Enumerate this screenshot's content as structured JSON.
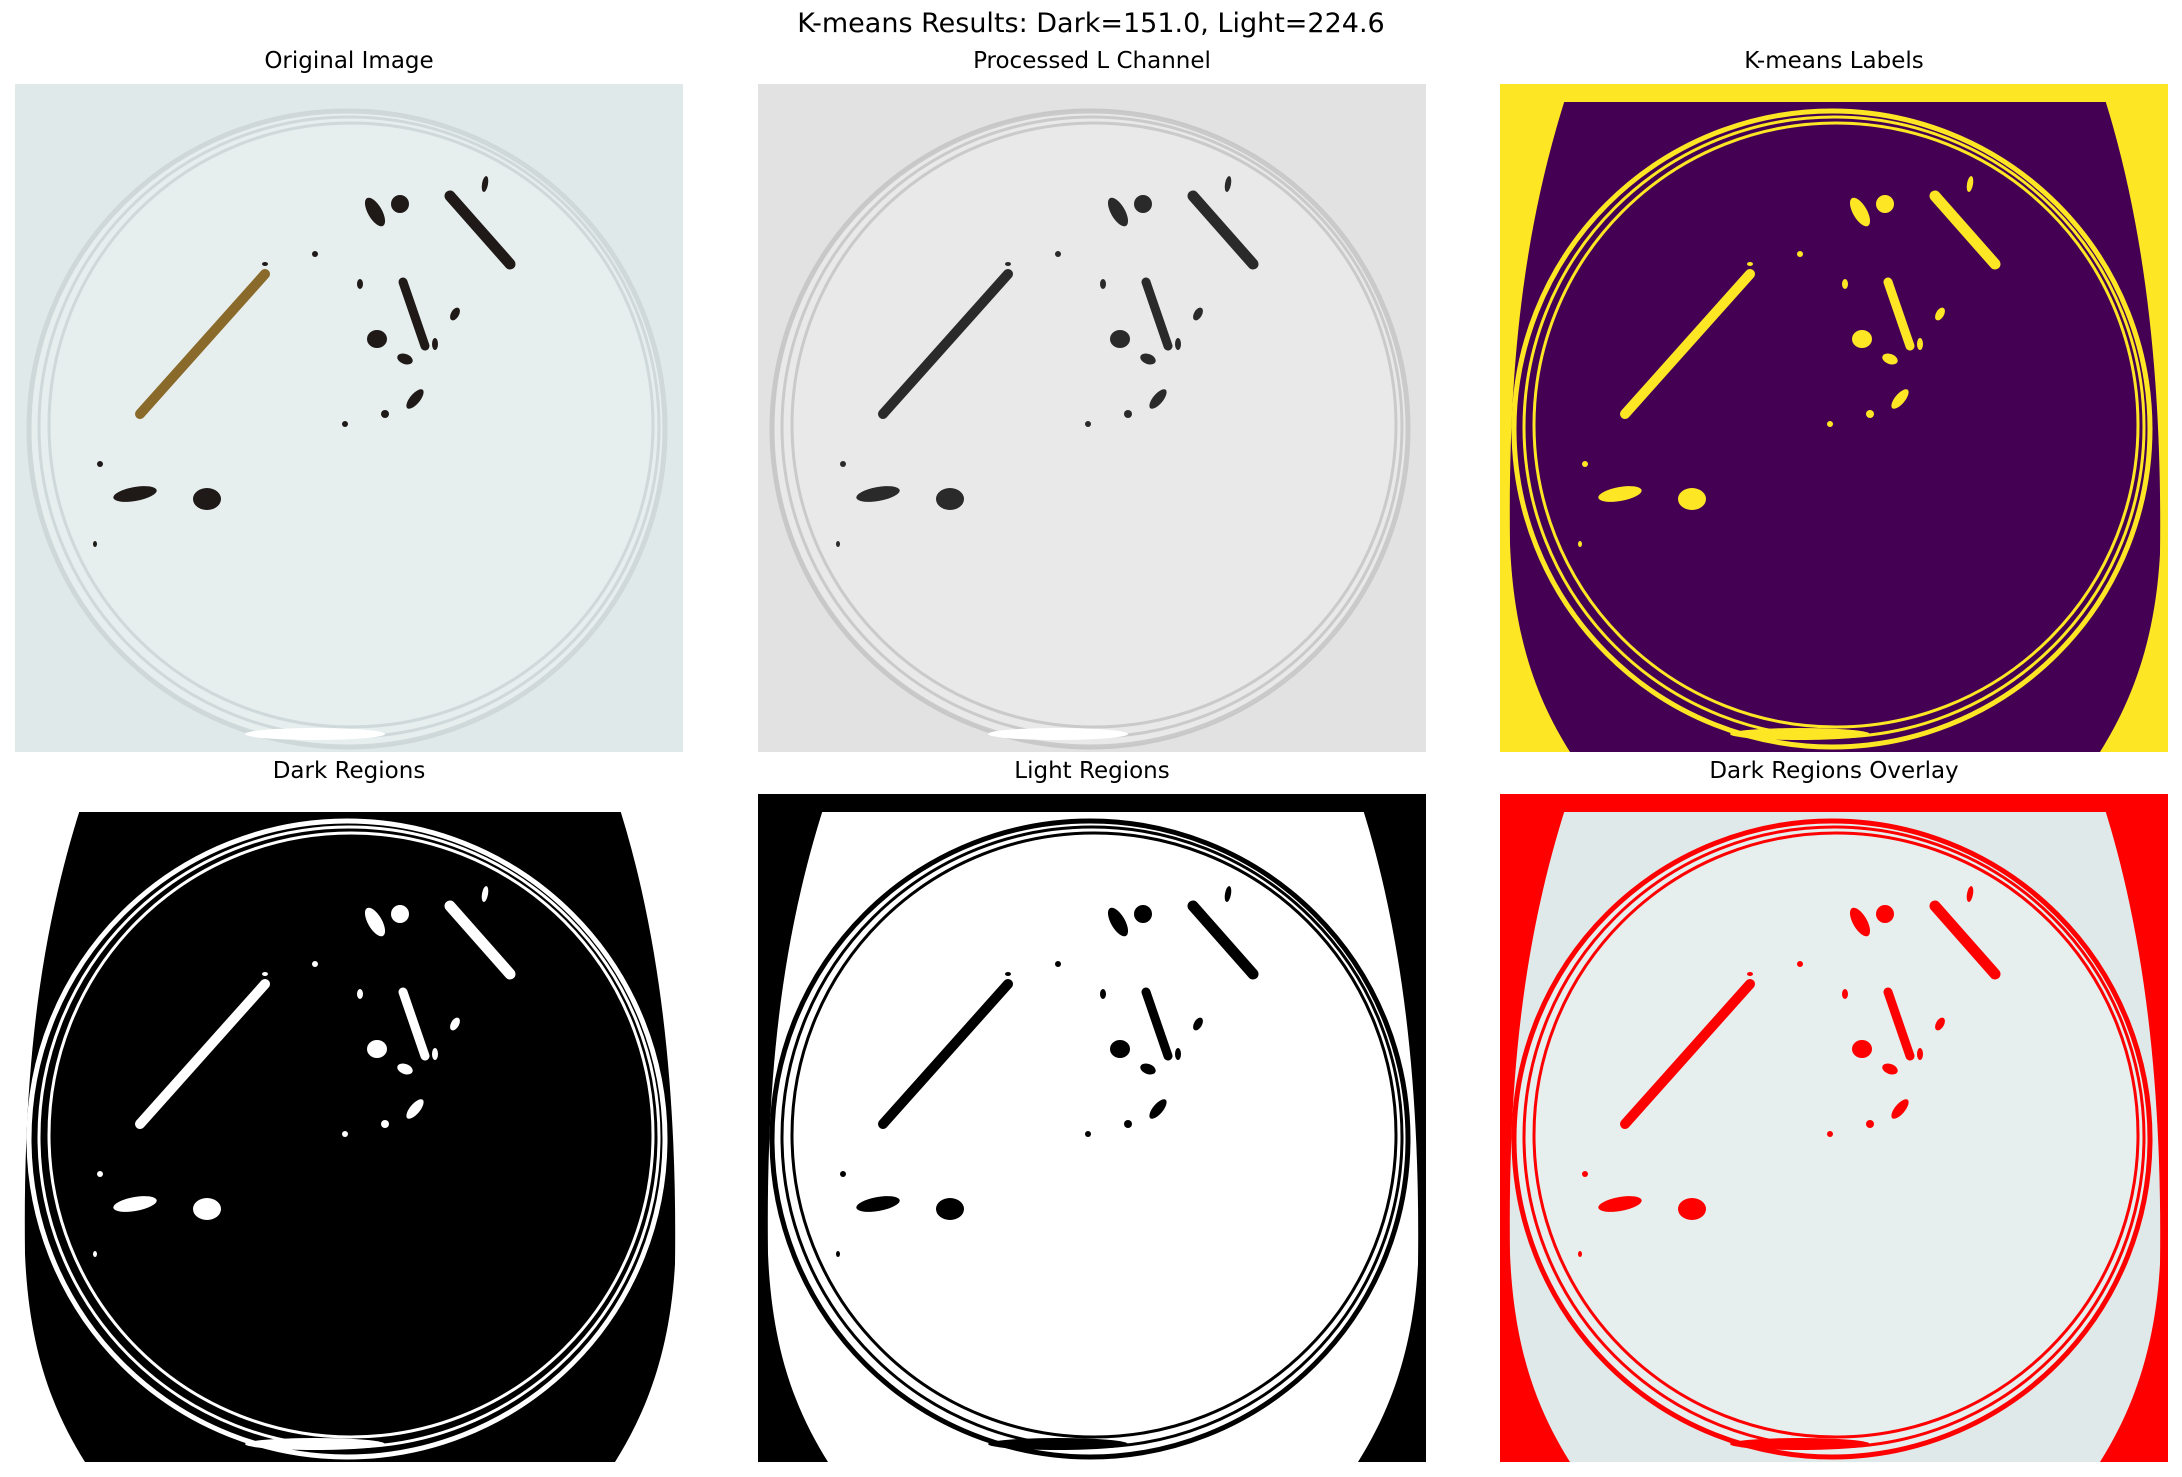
{
  "figure": {
    "suptitle": "K-means Results: Dark=151.0, Light=224.6"
  },
  "panels": [
    {
      "title": "Original Image",
      "mode": "original"
    },
    {
      "title": "Processed L Channel",
      "mode": "gray"
    },
    {
      "title": "K-means Labels",
      "mode": "labels"
    },
    {
      "title": "Dark Regions",
      "mode": "dark"
    },
    {
      "title": "Light Regions",
      "mode": "light"
    },
    {
      "title": "Dark Regions Overlay",
      "mode": "overlay"
    }
  ],
  "colors": {
    "viridis_low": "#440154",
    "viridis_high": "#fde725",
    "overlay_red": "#ff0000",
    "background_original": "#dfe9e9",
    "dish_original": "#e6eeee"
  }
}
